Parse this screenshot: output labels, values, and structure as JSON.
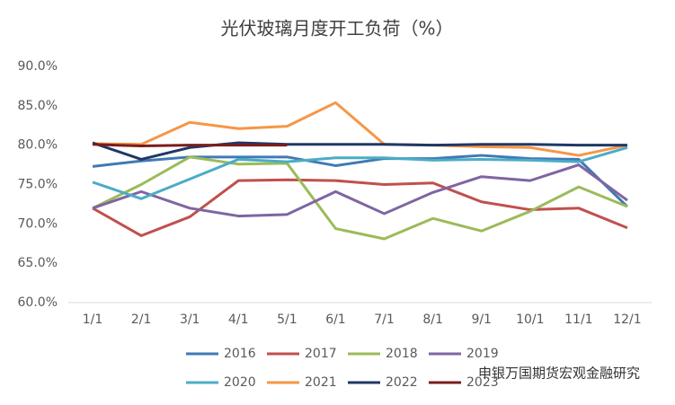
{
  "chart_data": {
    "type": "line",
    "title": "光伏玻璃月度开工负荷（%）",
    "categories": [
      "1/1",
      "2/1",
      "3/1",
      "4/1",
      "5/1",
      "6/1",
      "7/1",
      "8/1",
      "9/1",
      "10/1",
      "11/1",
      "12/1"
    ],
    "series": [
      {
        "name": "2016",
        "color": "#3e7ab5",
        "values": [
          77.3,
          78.0,
          78.5,
          78.5,
          78.5,
          77.4,
          78.3,
          78.3,
          78.7,
          78.3,
          78.2,
          72.2
        ]
      },
      {
        "name": "2017",
        "color": "#c0504d",
        "values": [
          72.0,
          68.5,
          70.9,
          75.5,
          75.6,
          75.5,
          75.0,
          75.2,
          72.8,
          71.8,
          72.0,
          69.5
        ]
      },
      {
        "name": "2018",
        "color": "#9bbb59",
        "values": [
          72.0,
          75.0,
          78.5,
          77.6,
          77.7,
          69.4,
          68.1,
          70.7,
          69.1,
          71.6,
          74.7,
          72.2
        ]
      },
      {
        "name": "2019",
        "color": "#8064a2",
        "values": [
          72.0,
          74.1,
          72.0,
          71.0,
          71.2,
          74.1,
          71.3,
          74.0,
          76.0,
          75.5,
          77.5,
          73.0
        ]
      },
      {
        "name": "2020",
        "color": "#4bacc6",
        "values": [
          75.3,
          73.2,
          75.7,
          78.2,
          77.9,
          78.4,
          78.4,
          78.1,
          78.2,
          78.1,
          77.9,
          79.7
        ]
      },
      {
        "name": "2021",
        "color": "#f79646",
        "values": [
          80.2,
          80.1,
          82.9,
          82.1,
          82.4,
          85.4,
          80.1,
          80.0,
          79.8,
          79.7,
          78.7,
          80.0
        ]
      },
      {
        "name": "2022",
        "color": "#1f3864",
        "values": [
          80.3,
          78.2,
          79.7,
          80.3,
          80.1,
          80.1,
          80.1,
          80.0,
          80.1,
          80.1,
          80.0,
          80.0
        ]
      },
      {
        "name": "2023",
        "color": "#7b1c1c",
        "values": [
          80.1,
          79.9,
          80.0,
          80.0,
          80.0,
          null,
          null,
          null,
          null,
          null,
          null,
          null
        ]
      }
    ],
    "ylim": [
      60,
      90
    ],
    "yticks": [
      {
        "value": 60,
        "label": "60.0%"
      },
      {
        "value": 65,
        "label": "65.0%"
      },
      {
        "value": 70,
        "label": "70.0%"
      },
      {
        "value": 75,
        "label": "75.0%"
      },
      {
        "value": 80,
        "label": "80.0%"
      },
      {
        "value": 85,
        "label": "85.0%"
      },
      {
        "value": 90,
        "label": "90.0%"
      }
    ],
    "grid": false,
    "legend": "bottom",
    "watermark": "申银万国期货宏观金融研究"
  }
}
